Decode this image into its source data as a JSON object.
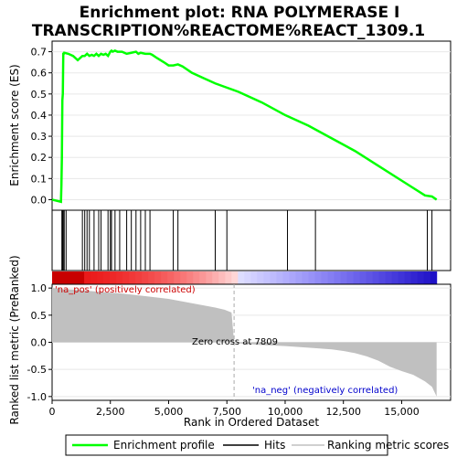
{
  "title_line1": "Enrichment plot: RNA POLYMERASE I",
  "title_line2": "TRANSCRIPTION%REACTOME%REACT_1309.1",
  "labels": {
    "pos": "'na_pos' (positively correlated)",
    "neg": "'na_neg' (negatively correlated)",
    "zero_cross": "Zero cross at 7809"
  },
  "legend": {
    "enrichment": "Enrichment profile",
    "hits": "Hits",
    "ranking": "Ranking metric scores"
  },
  "colors": {
    "enrichment": "#00ff00",
    "hits": "#000000",
    "ranking": "#c0c0c0"
  },
  "chart_data": [
    {
      "type": "line",
      "series": [
        {
          "name": "Enrichment profile",
          "x": [
            0,
            380,
            400,
            420,
            440,
            460,
            480,
            500,
            520,
            700,
            900,
            1100,
            1300,
            1400,
            1500,
            1600,
            1700,
            1800,
            1900,
            2000,
            2100,
            2200,
            2300,
            2400,
            2500,
            2550,
            2600,
            2700,
            2800,
            2900,
            3000,
            3200,
            3400,
            3600,
            3700,
            3800,
            4000,
            4200,
            4300,
            4500,
            4800,
            5000,
            5200,
            5400,
            5600,
            6000,
            6500,
            7000,
            7500,
            8000,
            9000,
            10000,
            11000,
            12000,
            13000,
            14000,
            15000,
            16000,
            16300,
            16500
          ],
          "y": [
            0.0,
            -0.01,
            0.07,
            0.2,
            0.47,
            0.5,
            0.69,
            0.69,
            0.695,
            0.69,
            0.68,
            0.66,
            0.68,
            0.68,
            0.69,
            0.68,
            0.685,
            0.68,
            0.69,
            0.68,
            0.69,
            0.685,
            0.69,
            0.68,
            0.7,
            0.705,
            0.7,
            0.705,
            0.7,
            0.7,
            0.7,
            0.69,
            0.695,
            0.7,
            0.69,
            0.695,
            0.69,
            0.69,
            0.685,
            0.67,
            0.65,
            0.635,
            0.635,
            0.64,
            0.63,
            0.6,
            0.575,
            0.55,
            0.53,
            0.51,
            0.46,
            0.4,
            0.35,
            0.29,
            0.23,
            0.16,
            0.09,
            0.02,
            0.015,
            0.0
          ]
        }
      ],
      "xlim": [
        0,
        17100
      ],
      "ylim": [
        -0.05,
        0.75
      ],
      "yticks": [
        0.0,
        0.1,
        0.2,
        0.3,
        0.4,
        0.5,
        0.6,
        0.7
      ],
      "ytick_labels": [
        "0.0",
        "0.1",
        "0.2",
        "0.3",
        "0.4",
        "0.5",
        "0.6",
        "0.7"
      ],
      "ylabel": "Enrichment score (ES)"
    },
    {
      "type": "hits",
      "x": [
        420,
        450,
        480,
        520,
        600,
        1300,
        1400,
        1500,
        1600,
        1800,
        2000,
        2100,
        2400,
        2500,
        2550,
        2700,
        2900,
        3200,
        3400,
        3600,
        3800,
        4000,
        4200,
        5200,
        5400,
        7000,
        7500,
        10100,
        11300,
        16100,
        16300
      ],
      "xlim": [
        0,
        17100
      ]
    },
    {
      "type": "area",
      "x": [
        0,
        500,
        1000,
        2000,
        3000,
        4000,
        5000,
        5500,
        6000,
        6500,
        7000,
        7400,
        7700,
        7809,
        8000,
        9000,
        10000,
        11000,
        12000,
        12500,
        13000,
        13500,
        14000,
        14500,
        15000,
        15500,
        16000,
        16300,
        16500
      ],
      "y": [
        1.0,
        0.98,
        0.97,
        0.93,
        0.9,
        0.85,
        0.8,
        0.76,
        0.72,
        0.68,
        0.64,
        0.6,
        0.55,
        0.0,
        -0.02,
        -0.05,
        -0.07,
        -0.1,
        -0.13,
        -0.16,
        -0.2,
        -0.26,
        -0.34,
        -0.45,
        -0.53,
        -0.6,
        -0.72,
        -0.82,
        -1.0
      ],
      "xlim": [
        0,
        17100
      ],
      "ylim": [
        -1.07,
        1.07
      ],
      "yticks": [
        -1.0,
        -0.5,
        0.0,
        0.5,
        1.0
      ],
      "ytick_labels": [
        "-1.0",
        "-0.5",
        "0.0",
        "0.5",
        "1.0"
      ],
      "xticks": [
        0,
        2500,
        5000,
        7500,
        10000,
        12500,
        15000
      ],
      "xtick_labels": [
        "0",
        "2,500",
        "5,000",
        "7,500",
        "10,000",
        "12,500",
        "15,000"
      ],
      "xlabel": "Rank in Ordered Dataset",
      "ylabel": "Ranked list metric (PreRanked)",
      "zero_cross": 7809
    }
  ]
}
